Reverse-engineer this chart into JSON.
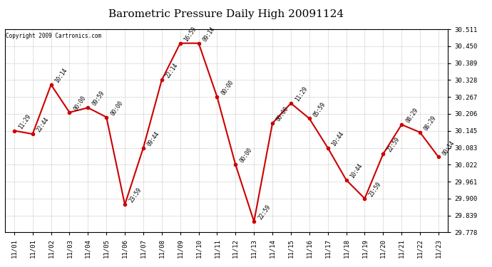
{
  "title": "Barometric Pressure Daily High 20091124",
  "copyright": "Copyright 2009 Cartronics.com",
  "background_color": "#ffffff",
  "line_color": "#cc0000",
  "grid_color": "#888888",
  "x_labels": [
    "11/01",
    "11/01",
    "11/02",
    "11/03",
    "11/04",
    "11/05",
    "11/06",
    "11/07",
    "11/08",
    "11/09",
    "11/10",
    "11/11",
    "11/12",
    "11/13",
    "11/14",
    "11/15",
    "11/16",
    "11/17",
    "11/18",
    "11/19",
    "11/20",
    "11/21",
    "11/22",
    "11/23"
  ],
  "y_values": [
    30.145,
    30.133,
    30.311,
    30.211,
    30.228,
    30.194,
    29.878,
    30.083,
    30.328,
    30.461,
    30.461,
    30.267,
    30.022,
    29.817,
    30.172,
    30.244,
    30.189,
    30.083,
    29.967,
    29.9,
    30.061,
    30.167,
    30.139,
    30.05
  ],
  "time_labels": [
    "11:29",
    "22:44",
    "10:14",
    "00:00",
    "09:59",
    "00:00",
    "23:59",
    "09:44",
    "22:14",
    "16:59",
    "09:14",
    "00:00",
    "00:00",
    "22:59",
    "00:00",
    "11:29",
    "05:59",
    "10:44",
    "10:44",
    "23:59",
    "22:59",
    "08:29",
    "08:29",
    "00:14"
  ],
  "ylim_min": 29.778,
  "ylim_max": 30.511,
  "yticks": [
    29.778,
    29.839,
    29.9,
    29.961,
    30.022,
    30.083,
    30.145,
    30.206,
    30.267,
    30.328,
    30.389,
    30.45,
    30.511
  ]
}
